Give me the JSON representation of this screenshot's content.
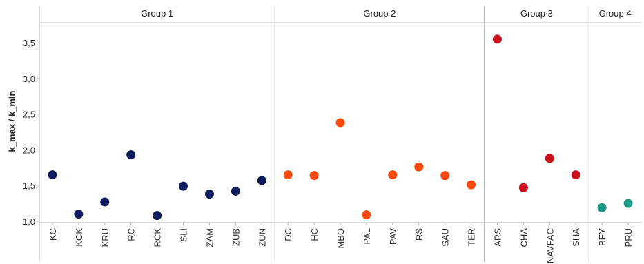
{
  "chart_data": {
    "type": "scatter",
    "ylabel": "k_max / k_min",
    "xlabel": "",
    "title": "",
    "ylim": [
      0.98,
      3.78
    ],
    "yticks": [
      1.0,
      1.5,
      2.0,
      2.5,
      3.0,
      3.5
    ],
    "ytick_labels": [
      "1,0",
      "1,5",
      "2,0",
      "2,5",
      "3,0",
      "3,5"
    ],
    "grid": false,
    "legend": "none",
    "groups": [
      {
        "name": "Group 1",
        "color": "#0c1c5c",
        "categories": [
          "KC",
          "KCK",
          "KRU",
          "RC",
          "RCK",
          "SLI",
          "ZAM",
          "ZUB",
          "ZUN"
        ],
        "values": [
          1.65,
          1.1,
          1.27,
          1.93,
          1.08,
          1.49,
          1.38,
          1.42,
          1.57
        ]
      },
      {
        "name": "Group 2",
        "color": "#fc4a0c",
        "categories": [
          "DC",
          "HC",
          "MBO",
          "PAL",
          "PAV",
          "RS",
          "SAU",
          "TER"
        ],
        "values": [
          1.65,
          1.64,
          2.38,
          1.09,
          1.65,
          1.76,
          1.64,
          1.51
        ]
      },
      {
        "name": "Group 3",
        "color": "#c8101c",
        "categories": [
          "ARS",
          "CHA",
          "NAVFAC",
          "SHA"
        ],
        "values": [
          3.55,
          1.47,
          1.88,
          1.65
        ]
      },
      {
        "name": "Group 4",
        "color": "#1a9a86",
        "categories": [
          "BEY",
          "PRU"
        ],
        "values": [
          1.19,
          1.25
        ]
      }
    ]
  }
}
